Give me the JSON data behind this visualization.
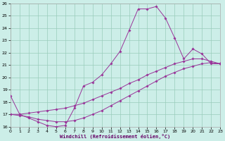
{
  "xlabel": "Windchill (Refroidissement éolien,°C)",
  "xlim": [
    0,
    23
  ],
  "ylim": [
    16,
    26
  ],
  "xticks": [
    0,
    1,
    2,
    3,
    4,
    5,
    6,
    7,
    8,
    9,
    10,
    11,
    12,
    13,
    14,
    15,
    16,
    17,
    18,
    19,
    20,
    21,
    22,
    23
  ],
  "yticks": [
    16,
    17,
    18,
    19,
    20,
    21,
    22,
    23,
    24,
    25,
    26
  ],
  "bg_color": "#cceee8",
  "line_color": "#993399",
  "grid_color": "#99ccbb",
  "curve1_x": [
    0,
    1,
    2,
    3,
    4,
    5,
    6,
    7,
    8,
    9,
    10,
    11,
    12,
    13,
    14,
    15,
    16,
    17,
    18,
    19,
    20,
    21,
    22,
    23
  ],
  "curve1_y": [
    18.5,
    17.0,
    16.7,
    16.4,
    16.1,
    16.0,
    16.1,
    17.5,
    19.3,
    19.6,
    20.2,
    21.1,
    22.1,
    23.8,
    25.55,
    25.55,
    25.75,
    24.8,
    23.2,
    21.5,
    22.3,
    21.9,
    21.1,
    21.1
  ],
  "curve2_x": [
    0,
    1,
    2,
    3,
    4,
    5,
    6,
    7,
    8,
    9,
    10,
    11,
    12,
    13,
    14,
    15,
    16,
    17,
    18,
    19,
    20,
    21,
    22,
    23
  ],
  "curve2_y": [
    17.0,
    17.0,
    17.1,
    17.2,
    17.3,
    17.4,
    17.5,
    17.7,
    17.9,
    18.2,
    18.5,
    18.8,
    19.1,
    19.5,
    19.8,
    20.2,
    20.5,
    20.8,
    21.1,
    21.3,
    21.5,
    21.5,
    21.3,
    21.1
  ],
  "curve3_x": [
    0,
    1,
    2,
    3,
    4,
    5,
    6,
    7,
    8,
    9,
    10,
    11,
    12,
    13,
    14,
    15,
    16,
    17,
    18,
    19,
    20,
    21,
    22,
    23
  ],
  "curve3_y": [
    17.0,
    16.9,
    16.8,
    16.6,
    16.5,
    16.4,
    16.4,
    16.5,
    16.7,
    17.0,
    17.3,
    17.7,
    18.1,
    18.5,
    18.9,
    19.3,
    19.7,
    20.1,
    20.4,
    20.7,
    20.9,
    21.1,
    21.2,
    21.1
  ]
}
